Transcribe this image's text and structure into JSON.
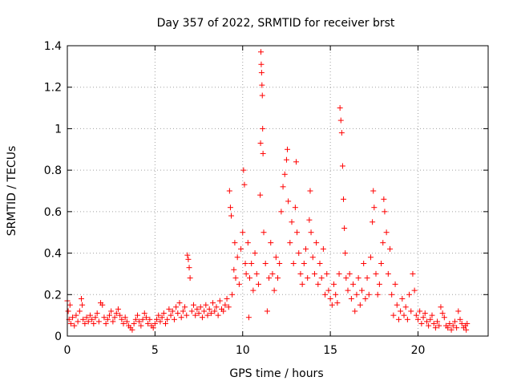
{
  "chart_data": {
    "type": "scatter",
    "title": "Day 357 of 2022, SRMTID for receiver brst",
    "xlabel": "GPS time / hours",
    "ylabel": "SRMTID / TECUs",
    "xlim": [
      0,
      24
    ],
    "ylim": [
      0,
      1.4
    ],
    "xticks": [
      0,
      5,
      10,
      15,
      20
    ],
    "yticks": [
      0,
      0.2,
      0.4,
      0.6,
      0.8,
      1,
      1.2,
      1.4
    ],
    "xtick_labels": [
      "0",
      "5",
      "10",
      "15",
      "20"
    ],
    "ytick_labels": [
      "0",
      "0.2",
      "0.4",
      "0.6",
      "0.8",
      "1",
      "1.2",
      "1.4"
    ],
    "grid": true,
    "marker": "+",
    "color": "#ff0000",
    "series": [
      {
        "name": "brst",
        "points": [
          [
            0.0,
            0.17
          ],
          [
            0.05,
            0.12
          ],
          [
            0.1,
            0.08
          ],
          [
            0.15,
            0.15
          ],
          [
            0.2,
            0.06
          ],
          [
            0.3,
            0.09
          ],
          [
            0.4,
            0.05
          ],
          [
            0.5,
            0.1
          ],
          [
            0.6,
            0.07
          ],
          [
            0.7,
            0.12
          ],
          [
            0.8,
            0.18
          ],
          [
            0.85,
            0.15
          ],
          [
            0.9,
            0.08
          ],
          [
            1.0,
            0.06
          ],
          [
            1.1,
            0.09
          ],
          [
            1.2,
            0.07
          ],
          [
            1.3,
            0.1
          ],
          [
            1.4,
            0.08
          ],
          [
            1.5,
            0.06
          ],
          [
            1.6,
            0.09
          ],
          [
            1.7,
            0.11
          ],
          [
            1.8,
            0.07
          ],
          [
            1.9,
            0.16
          ],
          [
            2.0,
            0.15
          ],
          [
            2.1,
            0.09
          ],
          [
            2.2,
            0.06
          ],
          [
            2.3,
            0.08
          ],
          [
            2.4,
            0.1
          ],
          [
            2.5,
            0.12
          ],
          [
            2.6,
            0.07
          ],
          [
            2.7,
            0.09
          ],
          [
            2.8,
            0.11
          ],
          [
            2.9,
            0.13
          ],
          [
            3.0,
            0.1
          ],
          [
            3.1,
            0.08
          ],
          [
            3.2,
            0.06
          ],
          [
            3.3,
            0.09
          ],
          [
            3.4,
            0.07
          ],
          [
            3.5,
            0.05
          ],
          [
            3.6,
            0.04
          ],
          [
            3.7,
            0.03
          ],
          [
            3.8,
            0.06
          ],
          [
            3.9,
            0.08
          ],
          [
            4.0,
            0.1
          ],
          [
            4.1,
            0.07
          ],
          [
            4.2,
            0.05
          ],
          [
            4.3,
            0.08
          ],
          [
            4.4,
            0.11
          ],
          [
            4.5,
            0.09
          ],
          [
            4.6,
            0.06
          ],
          [
            4.7,
            0.08
          ],
          [
            4.8,
            0.05
          ],
          [
            4.9,
            0.04
          ],
          [
            5.0,
            0.06
          ],
          [
            5.1,
            0.08
          ],
          [
            5.2,
            0.1
          ],
          [
            5.3,
            0.07
          ],
          [
            5.4,
            0.09
          ],
          [
            5.5,
            0.11
          ],
          [
            5.6,
            0.06
          ],
          [
            5.7,
            0.08
          ],
          [
            5.8,
            0.13
          ],
          [
            5.9,
            0.1
          ],
          [
            6.0,
            0.12
          ],
          [
            6.1,
            0.08
          ],
          [
            6.2,
            0.14
          ],
          [
            6.3,
            0.11
          ],
          [
            6.4,
            0.16
          ],
          [
            6.5,
            0.09
          ],
          [
            6.6,
            0.12
          ],
          [
            6.7,
            0.14
          ],
          [
            6.8,
            0.1
          ],
          [
            6.85,
            0.39
          ],
          [
            6.9,
            0.37
          ],
          [
            6.95,
            0.33
          ],
          [
            7.0,
            0.28
          ],
          [
            7.1,
            0.12
          ],
          [
            7.2,
            0.15
          ],
          [
            7.3,
            0.1
          ],
          [
            7.4,
            0.13
          ],
          [
            7.5,
            0.11
          ],
          [
            7.6,
            0.14
          ],
          [
            7.7,
            0.09
          ],
          [
            7.8,
            0.12
          ],
          [
            7.9,
            0.15
          ],
          [
            8.0,
            0.1
          ],
          [
            8.1,
            0.13
          ],
          [
            8.2,
            0.11
          ],
          [
            8.3,
            0.16
          ],
          [
            8.4,
            0.12
          ],
          [
            8.5,
            0.14
          ],
          [
            8.6,
            0.1
          ],
          [
            8.7,
            0.17
          ],
          [
            8.8,
            0.13
          ],
          [
            8.9,
            0.12
          ],
          [
            9.0,
            0.15
          ],
          [
            9.1,
            0.18
          ],
          [
            9.2,
            0.14
          ],
          [
            9.25,
            0.7
          ],
          [
            9.3,
            0.62
          ],
          [
            9.35,
            0.58
          ],
          [
            9.4,
            0.2
          ],
          [
            9.5,
            0.32
          ],
          [
            9.55,
            0.45
          ],
          [
            9.6,
            0.28
          ],
          [
            9.7,
            0.38
          ],
          [
            9.8,
            0.25
          ],
          [
            9.9,
            0.42
          ],
          [
            10.0,
            0.5
          ],
          [
            10.05,
            0.8
          ],
          [
            10.1,
            0.73
          ],
          [
            10.15,
            0.35
          ],
          [
            10.2,
            0.3
          ],
          [
            10.3,
            0.45
          ],
          [
            10.35,
            0.09
          ],
          [
            10.4,
            0.28
          ],
          [
            10.5,
            0.35
          ],
          [
            10.6,
            0.22
          ],
          [
            10.7,
            0.4
          ],
          [
            10.8,
            0.3
          ],
          [
            10.9,
            0.25
          ],
          [
            11.0,
            0.68
          ],
          [
            11.02,
            0.93
          ],
          [
            11.04,
            1.37
          ],
          [
            11.06,
            1.31
          ],
          [
            11.08,
            1.27
          ],
          [
            11.1,
            1.21
          ],
          [
            11.12,
            1.16
          ],
          [
            11.14,
            1.0
          ],
          [
            11.16,
            0.88
          ],
          [
            11.2,
            0.5
          ],
          [
            11.3,
            0.35
          ],
          [
            11.4,
            0.12
          ],
          [
            11.5,
            0.28
          ],
          [
            11.6,
            0.45
          ],
          [
            11.7,
            0.3
          ],
          [
            11.8,
            0.22
          ],
          [
            11.9,
            0.38
          ],
          [
            12.0,
            0.28
          ],
          [
            12.1,
            0.35
          ],
          [
            12.2,
            0.6
          ],
          [
            12.3,
            0.72
          ],
          [
            12.4,
            0.78
          ],
          [
            12.5,
            0.85
          ],
          [
            12.55,
            0.9
          ],
          [
            12.6,
            0.65
          ],
          [
            12.7,
            0.45
          ],
          [
            12.8,
            0.55
          ],
          [
            12.9,
            0.35
          ],
          [
            13.0,
            0.62
          ],
          [
            13.05,
            0.84
          ],
          [
            13.1,
            0.5
          ],
          [
            13.2,
            0.4
          ],
          [
            13.3,
            0.3
          ],
          [
            13.4,
            0.25
          ],
          [
            13.5,
            0.35
          ],
          [
            13.6,
            0.42
          ],
          [
            13.7,
            0.28
          ],
          [
            13.8,
            0.56
          ],
          [
            13.85,
            0.7
          ],
          [
            13.9,
            0.5
          ],
          [
            14.0,
            0.38
          ],
          [
            14.1,
            0.3
          ],
          [
            14.2,
            0.45
          ],
          [
            14.3,
            0.25
          ],
          [
            14.4,
            0.35
          ],
          [
            14.5,
            0.28
          ],
          [
            14.6,
            0.42
          ],
          [
            14.7,
            0.2
          ],
          [
            14.8,
            0.3
          ],
          [
            14.9,
            0.22
          ],
          [
            15.0,
            0.18
          ],
          [
            15.1,
            0.15
          ],
          [
            15.2,
            0.25
          ],
          [
            15.3,
            0.2
          ],
          [
            15.4,
            0.16
          ],
          [
            15.5,
            0.3
          ],
          [
            15.55,
            1.1
          ],
          [
            15.6,
            1.04
          ],
          [
            15.65,
            0.98
          ],
          [
            15.7,
            0.82
          ],
          [
            15.75,
            0.66
          ],
          [
            15.8,
            0.52
          ],
          [
            15.85,
            0.4
          ],
          [
            15.9,
            0.28
          ],
          [
            16.0,
            0.22
          ],
          [
            16.1,
            0.3
          ],
          [
            16.2,
            0.18
          ],
          [
            16.3,
            0.25
          ],
          [
            16.4,
            0.12
          ],
          [
            16.5,
            0.2
          ],
          [
            16.6,
            0.28
          ],
          [
            16.7,
            0.15
          ],
          [
            16.8,
            0.22
          ],
          [
            16.9,
            0.35
          ],
          [
            17.0,
            0.18
          ],
          [
            17.1,
            0.28
          ],
          [
            17.2,
            0.2
          ],
          [
            17.3,
            0.38
          ],
          [
            17.4,
            0.55
          ],
          [
            17.45,
            0.7
          ],
          [
            17.5,
            0.62
          ],
          [
            17.6,
            0.3
          ],
          [
            17.7,
            0.2
          ],
          [
            17.8,
            0.25
          ],
          [
            17.9,
            0.35
          ],
          [
            18.0,
            0.45
          ],
          [
            18.05,
            0.66
          ],
          [
            18.1,
            0.6
          ],
          [
            18.2,
            0.5
          ],
          [
            18.3,
            0.3
          ],
          [
            18.4,
            0.42
          ],
          [
            18.5,
            0.2
          ],
          [
            18.6,
            0.1
          ],
          [
            18.7,
            0.25
          ],
          [
            18.8,
            0.15
          ],
          [
            18.9,
            0.08
          ],
          [
            19.0,
            0.12
          ],
          [
            19.1,
            0.18
          ],
          [
            19.2,
            0.1
          ],
          [
            19.3,
            0.14
          ],
          [
            19.4,
            0.08
          ],
          [
            19.5,
            0.2
          ],
          [
            19.6,
            0.12
          ],
          [
            19.7,
            0.3
          ],
          [
            19.8,
            0.22
          ],
          [
            19.9,
            0.1
          ],
          [
            20.0,
            0.08
          ],
          [
            20.1,
            0.12
          ],
          [
            20.2,
            0.06
          ],
          [
            20.3,
            0.09
          ],
          [
            20.4,
            0.11
          ],
          [
            20.5,
            0.07
          ],
          [
            20.6,
            0.05
          ],
          [
            20.7,
            0.08
          ],
          [
            20.8,
            0.1
          ],
          [
            20.9,
            0.06
          ],
          [
            21.0,
            0.04
          ],
          [
            21.1,
            0.07
          ],
          [
            21.2,
            0.05
          ],
          [
            21.3,
            0.14
          ],
          [
            21.4,
            0.11
          ],
          [
            21.5,
            0.09
          ],
          [
            21.6,
            0.05
          ],
          [
            21.7,
            0.04
          ],
          [
            21.8,
            0.06
          ],
          [
            21.9,
            0.03
          ],
          [
            22.0,
            0.05
          ],
          [
            22.1,
            0.07
          ],
          [
            22.2,
            0.04
          ],
          [
            22.3,
            0.12
          ],
          [
            22.4,
            0.08
          ],
          [
            22.5,
            0.06
          ],
          [
            22.6,
            0.04
          ],
          [
            22.7,
            0.05
          ],
          [
            22.75,
            0.03
          ],
          [
            22.8,
            0.06
          ]
        ]
      }
    ]
  }
}
